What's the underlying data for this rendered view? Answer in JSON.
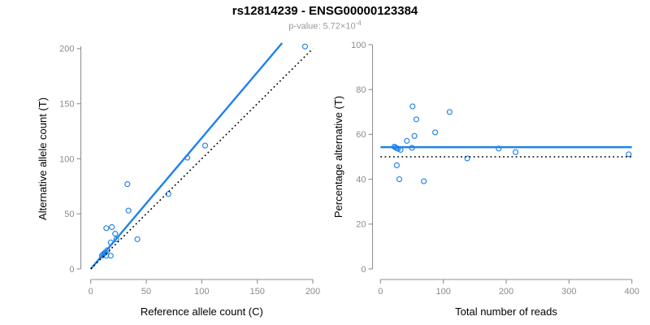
{
  "header": {
    "title": "rs12814239 - ENSG00000123384",
    "subtitle_base": "p-value: 5.72×10",
    "subtitle_exponent": "-4"
  },
  "colors": {
    "accent_blue": "#1e82eb",
    "line_black": "#000000",
    "tick_label_gray": "#8c8c8c",
    "axis_gray": "#909090",
    "axis_title_black": "#000000",
    "subtitle_gray": "#999999"
  },
  "chart_data": [
    {
      "name": "allele-counts-scatter",
      "type": "scatter",
      "title": "",
      "xlabel": "Reference allele count (C)",
      "ylabel": "Alternative allele count (T)",
      "xlim": [
        0,
        200
      ],
      "ylim": [
        0,
        200
      ],
      "xticks": [
        0,
        50,
        100,
        150,
        200
      ],
      "yticks": [
        0,
        50,
        100,
        150,
        200
      ],
      "grid": false,
      "legend": null,
      "points": [
        [
          10,
          12
        ],
        [
          11,
          13
        ],
        [
          12,
          14
        ],
        [
          13,
          15
        ],
        [
          14,
          12
        ],
        [
          18,
          12
        ],
        [
          15,
          17
        ],
        [
          14,
          37
        ],
        [
          19,
          38
        ],
        [
          22,
          32
        ],
        [
          18,
          24
        ],
        [
          23,
          27
        ],
        [
          33,
          77
        ],
        [
          34,
          53
        ],
        [
          42,
          27
        ],
        [
          70,
          68
        ],
        [
          87,
          101
        ],
        [
          103,
          112
        ],
        [
          193,
          202
        ]
      ],
      "lines": [
        {
          "label": "fitted-ratio",
          "style": "solid",
          "slope": 1.19,
          "intercept": 0
        },
        {
          "label": "identity",
          "style": "dotted",
          "slope": 1,
          "intercept": 0
        }
      ]
    },
    {
      "name": "percentage-vs-coverage-scatter",
      "type": "scatter",
      "title": "",
      "xlabel": "Total number of reads",
      "ylabel": "Percentage alternative (T)",
      "xlim": [
        0,
        400
      ],
      "ylim": [
        0,
        100
      ],
      "xticks": [
        0,
        100,
        200,
        300,
        400
      ],
      "yticks": [
        0,
        20,
        40,
        60,
        80,
        100
      ],
      "grid": false,
      "legend": null,
      "points": [
        [
          22,
          54.5
        ],
        [
          24,
          54.2
        ],
        [
          26,
          53.8
        ],
        [
          28,
          53.6
        ],
        [
          26,
          46.2
        ],
        [
          30,
          40.0
        ],
        [
          32,
          53.1
        ],
        [
          51,
          72.5
        ],
        [
          57,
          66.7
        ],
        [
          54,
          59.3
        ],
        [
          42,
          57.1
        ],
        [
          50,
          54.0
        ],
        [
          110,
          70.0
        ],
        [
          87,
          60.9
        ],
        [
          69,
          39.1
        ],
        [
          138,
          49.3
        ],
        [
          188,
          53.7
        ],
        [
          215,
          52.1
        ],
        [
          395,
          51.1
        ]
      ],
      "lines": [
        {
          "label": "mean-percentage",
          "style": "solid",
          "y": 54.3
        },
        {
          "label": "null-50-percent",
          "style": "dotted",
          "y": 50
        }
      ]
    }
  ]
}
